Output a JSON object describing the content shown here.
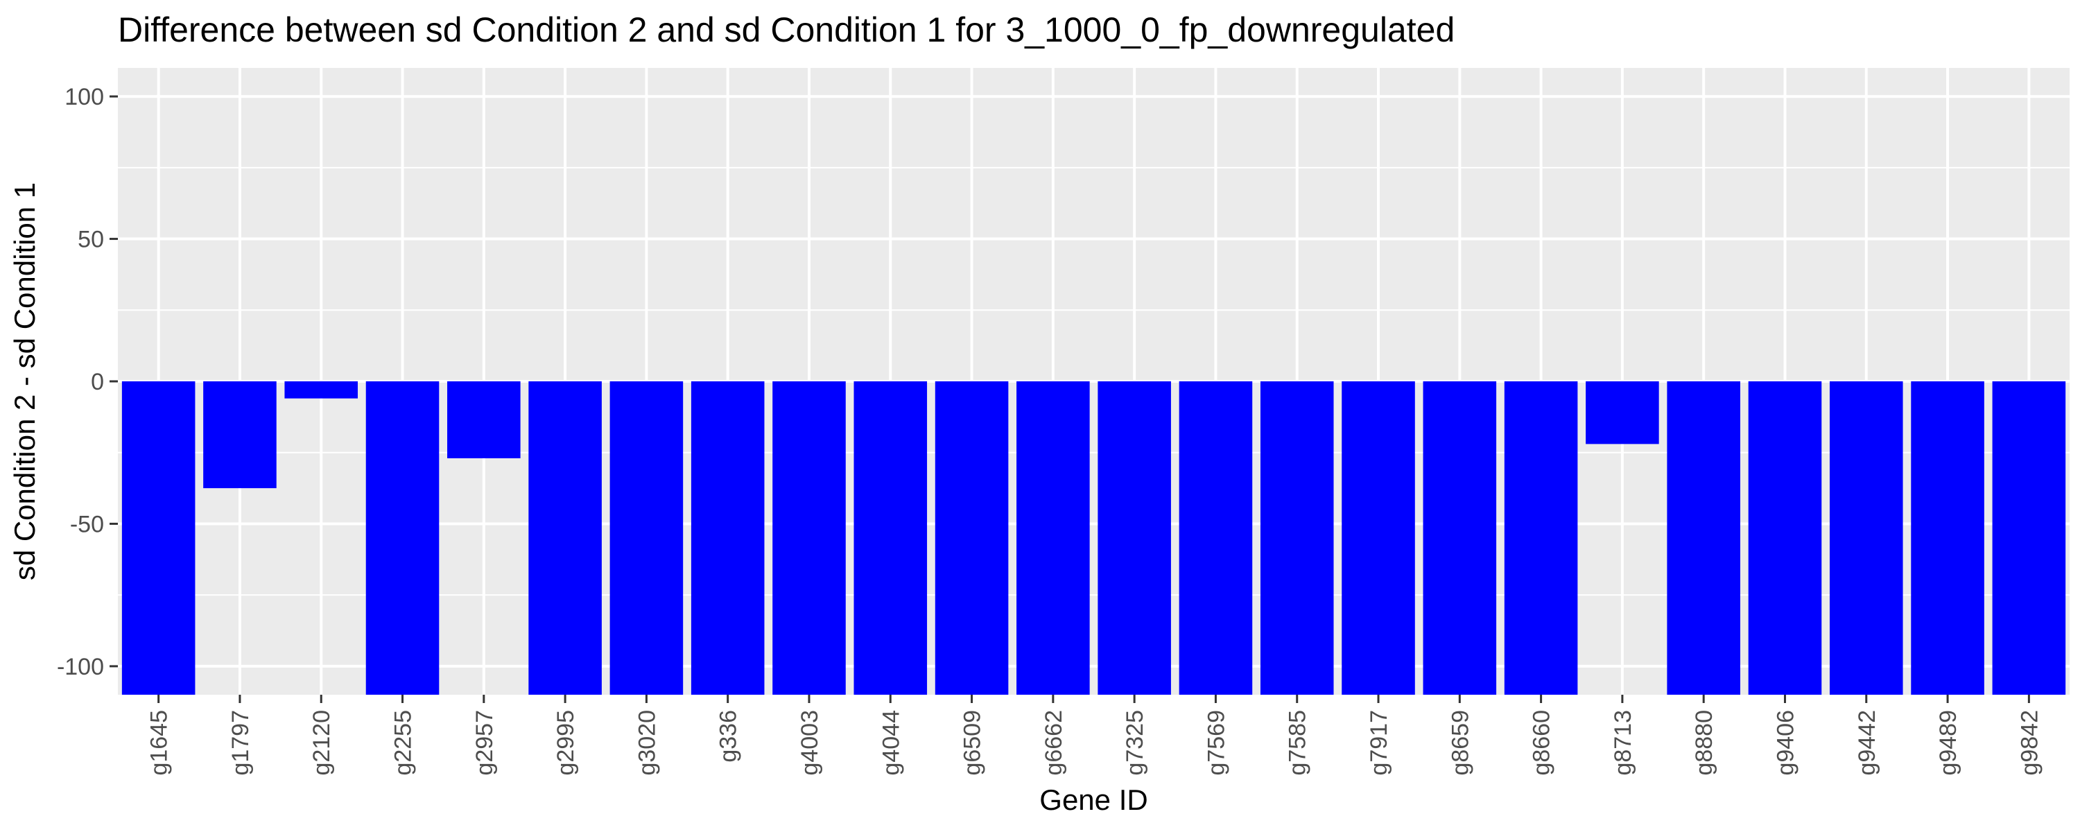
{
  "chart_data": {
    "type": "bar",
    "title": "Difference between sd Condition 2 and sd Condition 1 for 3_1000_0_fp_downregulated",
    "xlabel": "Gene ID",
    "ylabel": "sd Condition 2 - sd Condition 1",
    "ylim": [
      -110,
      110
    ],
    "yticks": [
      100,
      50,
      0,
      -50,
      -100
    ],
    "grid": true,
    "legend": "none",
    "bar_color": "#0000ff",
    "panel_color": "#ebebeb",
    "categories": [
      "g1645",
      "g1797",
      "g2120",
      "g2255",
      "g2957",
      "g2995",
      "g3020",
      "g336",
      "g4003",
      "g4044",
      "g6509",
      "g6662",
      "g7325",
      "g7569",
      "g7585",
      "g7917",
      "g8659",
      "g8660",
      "g8713",
      "g8880",
      "g9406",
      "g9442",
      "g9489",
      "g9842"
    ],
    "values": [
      -110,
      -37.5,
      -6,
      -110,
      -27,
      -110,
      -110,
      -110,
      -110,
      -110,
      -110,
      -110,
      -110,
      -110,
      -110,
      -110,
      -110,
      -110,
      -22,
      -110,
      -110,
      -110,
      -110,
      -110
    ]
  }
}
